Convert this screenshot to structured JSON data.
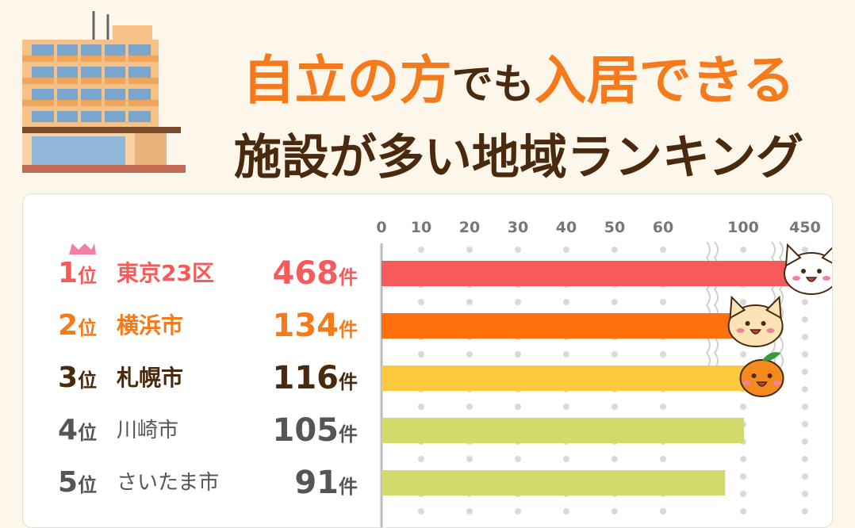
{
  "title": {
    "line1_parts": [
      {
        "text": "自立の方",
        "color": "#f57a1c"
      },
      {
        "text": "でも",
        "color": "#4a2a0e"
      },
      {
        "text": "入居できる",
        "color": "#f57a1c"
      }
    ],
    "line2": "施設が多い地域ランキング"
  },
  "rank_suffix": "位",
  "count_suffix": "件",
  "chart_data": {
    "type": "bar",
    "orientation": "horizontal",
    "categories": [
      "東京23区",
      "横浜市",
      "札幌市",
      "川崎市",
      "さいたま市"
    ],
    "ranks": [
      "1",
      "2",
      "3",
      "4",
      "5"
    ],
    "values": [
      468,
      134,
      116,
      105,
      91
    ],
    "x_ticks": [
      "0",
      "10",
      "20",
      "30",
      "40",
      "50",
      "60",
      "100",
      "450"
    ],
    "axis_break": "between 60 and 100, and between 100 and 450",
    "grid": "dotted vertical",
    "colors": [
      "#f65a5a",
      "#ff6f0b",
      "#fcc83e",
      "#d3d96a",
      "#d3d96a"
    ],
    "text_colors": [
      "#f65a5a",
      "#f57a1c",
      "#4a2a0e",
      "#555555",
      "#555555"
    ]
  }
}
